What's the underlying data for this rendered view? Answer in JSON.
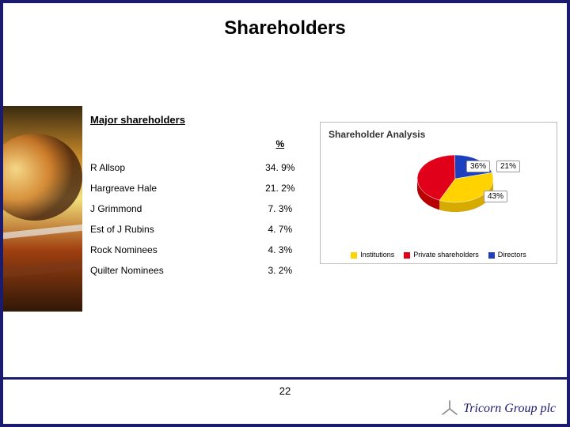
{
  "title": "Shareholders",
  "section_heading": "Major shareholders",
  "table": {
    "col_percent_header": "%",
    "rows": [
      {
        "name": "R Allsop",
        "pct": "34. 9%"
      },
      {
        "name": "Hargreave Hale",
        "pct": "21. 2%"
      },
      {
        "name": "J Grimmond",
        "pct": "7. 3%"
      },
      {
        "name": "Est of J Rubins",
        "pct": "4. 7%"
      },
      {
        "name": "Rock Nominees",
        "pct": "4. 3%"
      },
      {
        "name": "Quilter Nominees",
        "pct": "3. 2%"
      }
    ]
  },
  "chart": {
    "type": "pie",
    "title": "Shareholder Analysis",
    "background_color": "#ffffff",
    "border_color": "#bbbbbb",
    "title_fontsize": 12,
    "legend_fontsize": 9,
    "slices": [
      {
        "label": "Institutions",
        "value": 36,
        "color": "#ffd200",
        "callout": "36%"
      },
      {
        "label": "Private shareholders",
        "value": 43,
        "color": "#e1001a",
        "callout": "43%"
      },
      {
        "label": "Directors",
        "value": 21,
        "color": "#1b3fbf",
        "callout": "21%"
      }
    ]
  },
  "page_number": "22",
  "logo_text": "Tricorn Group plc",
  "accent_color": "#1a1a6e",
  "sidebar_image": {
    "gradient": [
      "#3a2a10",
      "#c88a2a",
      "#f2e07a",
      "#a04010",
      "#301808"
    ]
  }
}
